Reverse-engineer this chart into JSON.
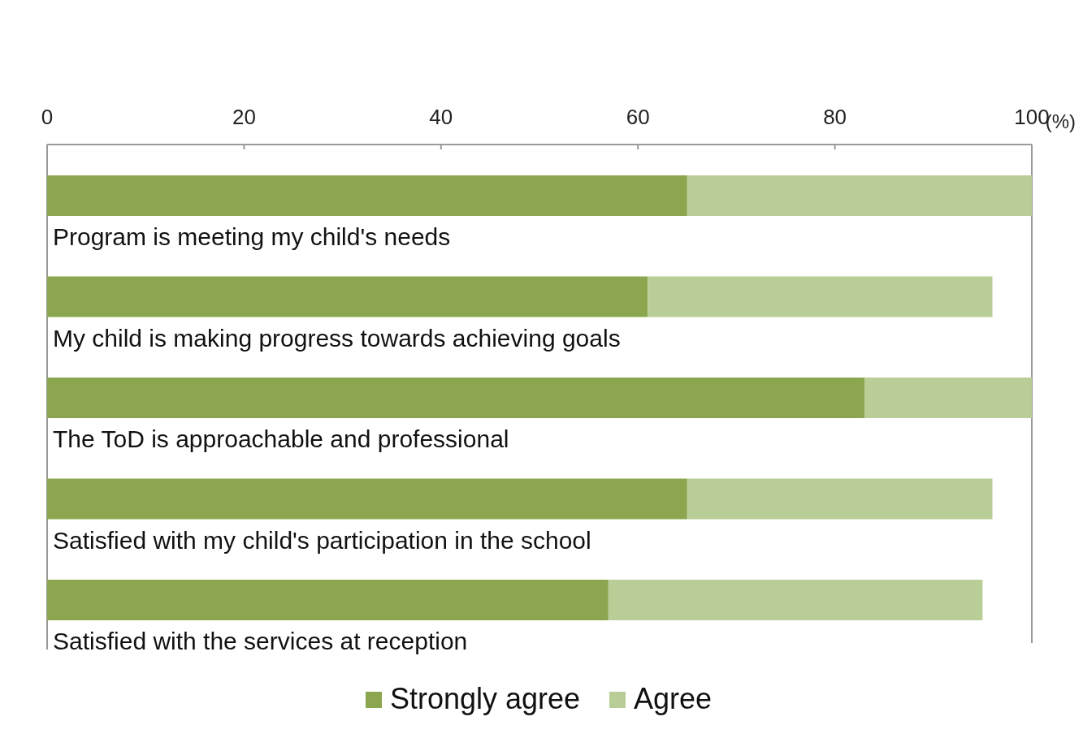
{
  "chart_data": {
    "type": "bar",
    "orientation": "horizontal",
    "stacked": true,
    "categories": [
      "Program is meeting my child's needs",
      "My child is making progress towards achieving goals",
      "The ToD is approachable and professional",
      "Satisfied with my child's participation in the school",
      "Satisfied with the services at reception"
    ],
    "series": [
      {
        "name": "Strongly agree",
        "color": "#8ba64f",
        "values": [
          65,
          61,
          83,
          65,
          57
        ]
      },
      {
        "name": "Agree",
        "color": "#b9ce96",
        "values": [
          35,
          35,
          17,
          31,
          38
        ]
      }
    ],
    "xlim": [
      0,
      100
    ],
    "xticks": [
      0,
      20,
      40,
      60,
      80,
      100
    ],
    "xlabel": "(%)",
    "grid": false,
    "legend": "bottom"
  }
}
